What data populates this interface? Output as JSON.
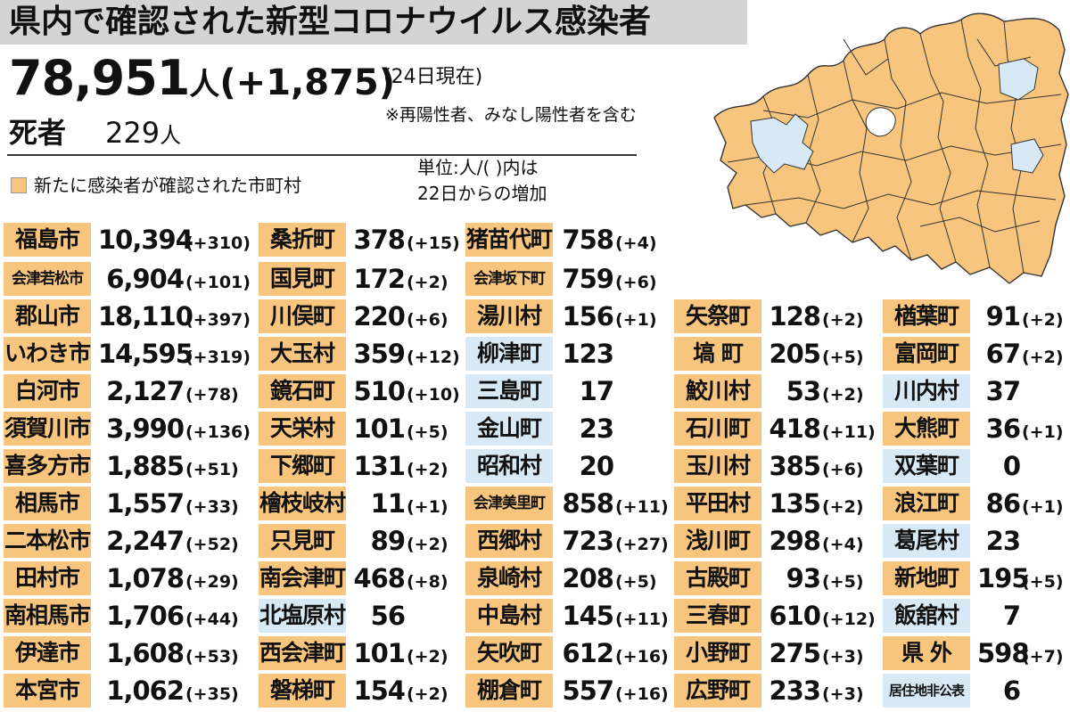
{
  "header": {
    "title": "県内で確認された新型コロナウイルス感染者",
    "total_count": "78,951",
    "total_unit": "人",
    "total_increase": "(+1,875)",
    "as_of": "(24日現在)",
    "note": "※再陽性者、みなし陽性者を含む",
    "deaths_label": "死者",
    "deaths_count": "229",
    "deaths_unit": "人",
    "legend_label": "新たに感染者が確認された市町村",
    "unit_note_line1": "単位:人/(   )内は",
    "unit_note_line2": "22日からの増加"
  },
  "colors": {
    "new_cases": "#f8c57e",
    "no_new_cases": "#d8e9f6",
    "title_bar": "#d4d4d4"
  },
  "columns": [
    [
      {
        "name": "福島市",
        "count": "10,394",
        "inc": "(+310)",
        "status": "new"
      },
      {
        "name": "会津若松市",
        "count": "6,904",
        "inc": "(+101)",
        "status": "new"
      },
      {
        "name": "郡山市",
        "count": "18,110",
        "inc": "(+397)",
        "status": "new"
      },
      {
        "name": "いわき市",
        "count": "14,595",
        "inc": "(+319)",
        "status": "new"
      },
      {
        "name": "白河市",
        "count": "2,127",
        "inc": "(+78)",
        "status": "new"
      },
      {
        "name": "須賀川市",
        "count": "3,990",
        "inc": "(+136)",
        "status": "new"
      },
      {
        "name": "喜多方市",
        "count": "1,885",
        "inc": "(+51)",
        "status": "new"
      },
      {
        "name": "相馬市",
        "count": "1,557",
        "inc": "(+33)",
        "status": "new"
      },
      {
        "name": "二本松市",
        "count": "2,247",
        "inc": "(+52)",
        "status": "new"
      },
      {
        "name": "田村市",
        "count": "1,078",
        "inc": "(+29)",
        "status": "new"
      },
      {
        "name": "南相馬市",
        "count": "1,706",
        "inc": "(+44)",
        "status": "new"
      },
      {
        "name": "伊達市",
        "count": "1,608",
        "inc": "(+53)",
        "status": "new"
      },
      {
        "name": "本宮市",
        "count": "1,062",
        "inc": "(+35)",
        "status": "new"
      }
    ],
    [
      {
        "name": "桑折町",
        "count": "378",
        "inc": "(+15)",
        "status": "new"
      },
      {
        "name": "国見町",
        "count": "172",
        "inc": "(+2)",
        "status": "new"
      },
      {
        "name": "川俣町",
        "count": "220",
        "inc": "(+6)",
        "status": "new"
      },
      {
        "name": "大玉村",
        "count": "359",
        "inc": "(+12)",
        "status": "new"
      },
      {
        "name": "鏡石町",
        "count": "510",
        "inc": "(+10)",
        "status": "new"
      },
      {
        "name": "天栄村",
        "count": "101",
        "inc": "(+5)",
        "status": "new"
      },
      {
        "name": "下郷町",
        "count": "131",
        "inc": "(+2)",
        "status": "new"
      },
      {
        "name": "檜枝岐村",
        "count": "11",
        "inc": "(+1)",
        "status": "new"
      },
      {
        "name": "只見町",
        "count": "89",
        "inc": "(+2)",
        "status": "new"
      },
      {
        "name": "南会津町",
        "count": "468",
        "inc": "(+8)",
        "status": "new"
      },
      {
        "name": "北塩原村",
        "count": "56",
        "inc": "",
        "status": "none"
      },
      {
        "name": "西会津町",
        "count": "101",
        "inc": "(+2)",
        "status": "new"
      },
      {
        "name": "磐梯町",
        "count": "154",
        "inc": "(+2)",
        "status": "new"
      }
    ],
    [
      {
        "name": "猪苗代町",
        "count": "758",
        "inc": "(+4)",
        "status": "new"
      },
      {
        "name": "会津坂下町",
        "count": "759",
        "inc": "(+6)",
        "status": "new"
      },
      {
        "name": "湯川村",
        "count": "156",
        "inc": "(+1)",
        "status": "new"
      },
      {
        "name": "柳津町",
        "count": "123",
        "inc": "",
        "status": "none"
      },
      {
        "name": "三島町",
        "count": "17",
        "inc": "",
        "status": "none"
      },
      {
        "name": "金山町",
        "count": "23",
        "inc": "",
        "status": "none"
      },
      {
        "name": "昭和村",
        "count": "20",
        "inc": "",
        "status": "none"
      },
      {
        "name": "会津美里町",
        "count": "858",
        "inc": "(+11)",
        "status": "new"
      },
      {
        "name": "西郷村",
        "count": "723",
        "inc": "(+27)",
        "status": "new"
      },
      {
        "name": "泉崎村",
        "count": "208",
        "inc": "(+5)",
        "status": "new"
      },
      {
        "name": "中島村",
        "count": "145",
        "inc": "(+11)",
        "status": "new"
      },
      {
        "name": "矢吹町",
        "count": "612",
        "inc": "(+16)",
        "status": "new"
      },
      {
        "name": "棚倉町",
        "count": "557",
        "inc": "(+16)",
        "status": "new"
      }
    ],
    [
      {
        "name": "矢祭町",
        "count": "128",
        "inc": "(+2)",
        "status": "new"
      },
      {
        "name": "塙  町",
        "count": "205",
        "inc": "(+5)",
        "status": "new"
      },
      {
        "name": "鮫川村",
        "count": "53",
        "inc": "(+2)",
        "status": "new"
      },
      {
        "name": "石川町",
        "count": "418",
        "inc": "(+11)",
        "status": "new"
      },
      {
        "name": "玉川村",
        "count": "385",
        "inc": "(+6)",
        "status": "new"
      },
      {
        "name": "平田村",
        "count": "135",
        "inc": "(+2)",
        "status": "new"
      },
      {
        "name": "浅川町",
        "count": "298",
        "inc": "(+4)",
        "status": "new"
      },
      {
        "name": "古殿町",
        "count": "93",
        "inc": "(+5)",
        "status": "new"
      },
      {
        "name": "三春町",
        "count": "610",
        "inc": "(+12)",
        "status": "new"
      },
      {
        "name": "小野町",
        "count": "275",
        "inc": "(+3)",
        "status": "new"
      },
      {
        "name": "広野町",
        "count": "233",
        "inc": "(+3)",
        "status": "new"
      }
    ],
    [
      {
        "name": "楢葉町",
        "count": "91",
        "inc": "(+2)",
        "status": "new"
      },
      {
        "name": "富岡町",
        "count": "67",
        "inc": "(+2)",
        "status": "new"
      },
      {
        "name": "川内村",
        "count": "37",
        "inc": "",
        "status": "none"
      },
      {
        "name": "大熊町",
        "count": "36",
        "inc": "(+1)",
        "status": "new"
      },
      {
        "name": "双葉町",
        "count": "0",
        "inc": "",
        "status": "none"
      },
      {
        "name": "浪江町",
        "count": "86",
        "inc": "(+1)",
        "status": "new"
      },
      {
        "name": "葛尾村",
        "count": "23",
        "inc": "",
        "status": "none"
      },
      {
        "name": "新地町",
        "count": "195",
        "inc": "(+5)",
        "status": "new"
      },
      {
        "name": "飯舘村",
        "count": "7",
        "inc": "",
        "status": "none"
      },
      {
        "name": "県  外",
        "count": "598",
        "inc": "(+7)",
        "status": "new"
      },
      {
        "name": "居住地非公表",
        "count": "6",
        "inc": "",
        "status": "none"
      }
    ]
  ]
}
